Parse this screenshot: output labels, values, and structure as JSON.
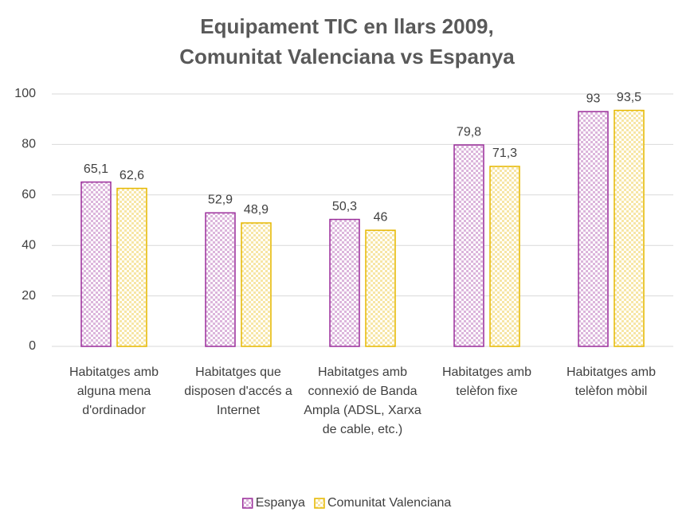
{
  "chart_data": {
    "type": "bar",
    "title": "Equipament TIC en llars 2009, Comunitat Valenciana vs Espanya",
    "categories": [
      "Habitatges amb alguna mena d'ordinador",
      "Habitatges que disposen d'accés a Internet",
      "Habitatges amb connexió de Banda Ampla (ADSL, Xarxa de cable, etc.)",
      "Habitatges amb telèfon fixe",
      "Habitatges amb telèfon mòbil"
    ],
    "series": [
      {
        "name": "Espanya",
        "color": "#9b2f9b",
        "values": [
          65.1,
          52.9,
          50.3,
          79.8,
          93
        ],
        "value_labels": [
          "65,1",
          "52,9",
          "50,3",
          "79,8",
          "93"
        ]
      },
      {
        "name": "Comunitat Valenciana",
        "color": "#e6b800",
        "values": [
          62.6,
          48.9,
          46,
          71.3,
          93.5
        ],
        "value_labels": [
          "62,6",
          "48,9",
          "46",
          "71,3",
          "93,5"
        ]
      }
    ],
    "ylim": [
      0,
      100
    ],
    "yticks": [
      0,
      20,
      40,
      60,
      80,
      100
    ],
    "grid": true,
    "legend": "bottom"
  }
}
